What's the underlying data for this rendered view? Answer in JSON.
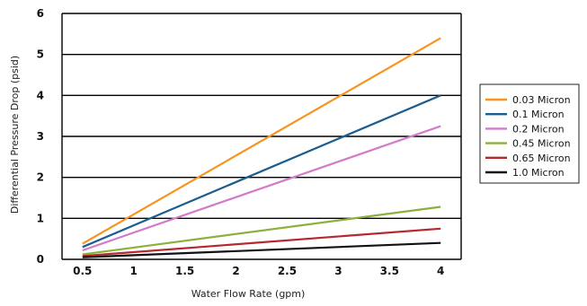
{
  "chart_data": {
    "type": "line",
    "xlabel": "Water Flow Rate (gpm)",
    "ylabel": "Differential Pressure Drop (psid)",
    "xlim": [
      0.3,
      4.2
    ],
    "ylim": [
      0,
      6
    ],
    "x_ticks": [
      "0.5",
      "1",
      "1.5",
      "2",
      "2.5",
      "3",
      "3.5",
      "4"
    ],
    "y_ticks": [
      "0",
      "1",
      "2",
      "3",
      "4",
      "5",
      "6"
    ],
    "grid": "horizontal",
    "legend_position": "right",
    "x": [
      0.5,
      4
    ],
    "series": [
      {
        "name": "0.03 Micron",
        "color": "#f7941d",
        "values": [
          0.38,
          5.4
        ]
      },
      {
        "name": "0.1 Micron",
        "color": "#1c5d8f",
        "values": [
          0.3,
          4.0
        ]
      },
      {
        "name": "0.2 Micron",
        "color": "#d37bc7",
        "values": [
          0.22,
          3.25
        ]
      },
      {
        "name": "0.45 Micron",
        "color": "#8cb03c",
        "values": [
          0.12,
          1.28
        ]
      },
      {
        "name": "0.65 Micron",
        "color": "#b5282e",
        "values": [
          0.08,
          0.75
        ]
      },
      {
        "name": "1.0 Micron",
        "color": "#111111",
        "values": [
          0.05,
          0.4
        ]
      }
    ]
  }
}
